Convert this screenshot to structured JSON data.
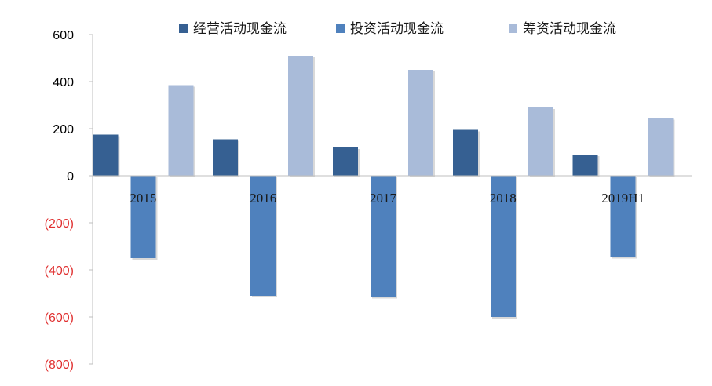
{
  "chart_data": {
    "type": "bar",
    "categories": [
      "2015",
      "2016",
      "2017",
      "2018",
      "2019H1"
    ],
    "series": [
      {
        "name": "经营活动现金流",
        "values": [
          175,
          155,
          120,
          195,
          90
        ],
        "color": "#366092"
      },
      {
        "name": "投资活动现金流",
        "values": [
          -350,
          -510,
          -515,
          -600,
          -345
        ],
        "color": "#4f81bd"
      },
      {
        "name": "筹资活动现金流",
        "values": [
          385,
          510,
          450,
          290,
          245
        ],
        "color": "#a9bbd9"
      }
    ],
    "y_ticks": [
      {
        "value": 600,
        "label": "600"
      },
      {
        "value": 400,
        "label": "400"
      },
      {
        "value": 200,
        "label": "200"
      },
      {
        "value": 0,
        "label": "0"
      },
      {
        "value": -200,
        "label": "(200)"
      },
      {
        "value": -400,
        "label": "(400)"
      },
      {
        "value": -600,
        "label": "(600)"
      },
      {
        "value": -800,
        "label": "(800)"
      }
    ],
    "ylim": [
      -800,
      600
    ],
    "negative_label_color": "#e03030",
    "grid": false,
    "legend_position": "top"
  }
}
